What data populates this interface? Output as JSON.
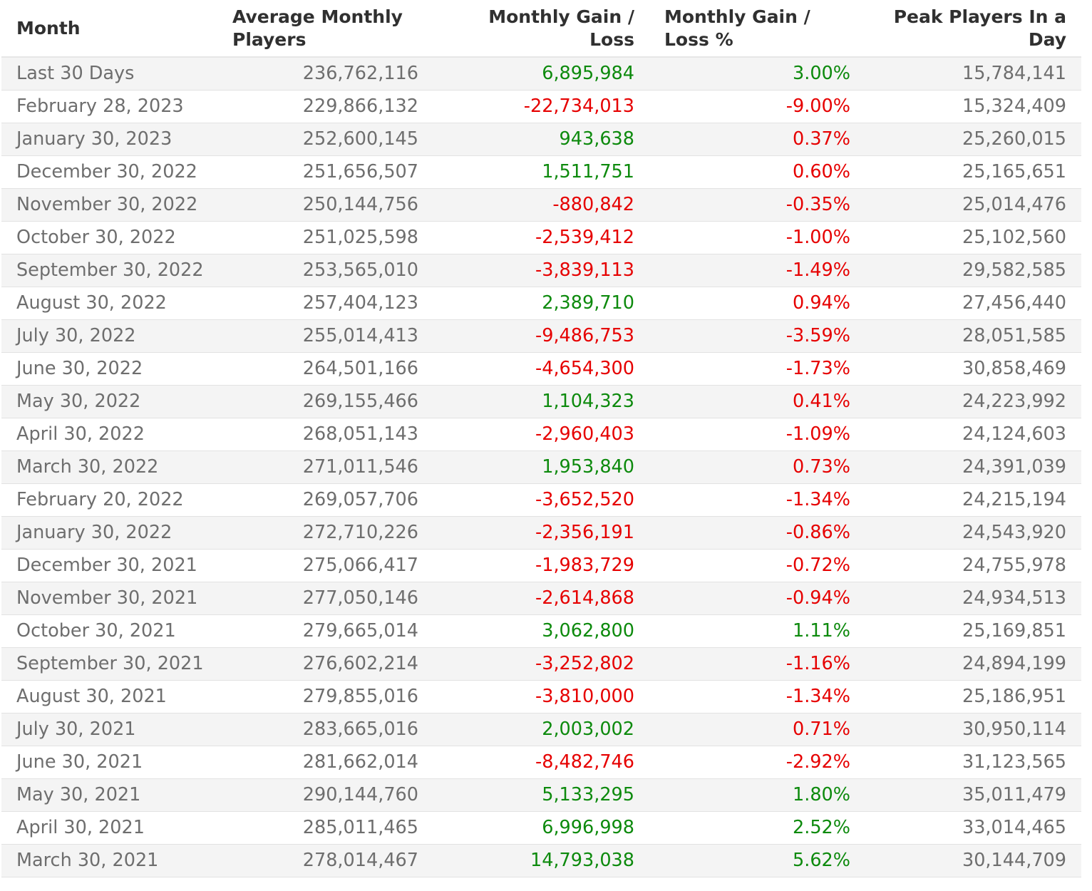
{
  "headers": {
    "month": "Month",
    "avg_players": "Average Monthly Players",
    "gain_loss": "Monthly Gain / Loss",
    "gain_loss_pct": "Monthly Gain / Loss %",
    "peak": "Peak Players In a Day"
  },
  "colors": {
    "positive": "#0d8a0d",
    "negative": "#e60000",
    "stripe": "#f4f4f4",
    "text": "#6e6e6e",
    "header_text": "#303030"
  },
  "rows": [
    {
      "month": "Last 30 Days",
      "avg": "236,762,116",
      "gain": "6,895,984",
      "gain_dir": "pos",
      "pct": "3.00%",
      "pct_dir": "pos",
      "peak": "15,784,141"
    },
    {
      "month": "February 28, 2023",
      "avg": "229,866,132",
      "gain": "-22,734,013",
      "gain_dir": "neg",
      "pct": "-9.00%",
      "pct_dir": "neg",
      "peak": "15,324,409"
    },
    {
      "month": "January 30, 2023",
      "avg": "252,600,145",
      "gain": "943,638",
      "gain_dir": "pos",
      "pct": "0.37%",
      "pct_dir": "neg",
      "peak": "25,260,015"
    },
    {
      "month": "December 30, 2022",
      "avg": "251,656,507",
      "gain": "1,511,751",
      "gain_dir": "pos",
      "pct": "0.60%",
      "pct_dir": "neg",
      "peak": "25,165,651"
    },
    {
      "month": "November 30, 2022",
      "avg": "250,144,756",
      "gain": "-880,842",
      "gain_dir": "neg",
      "pct": "-0.35%",
      "pct_dir": "neg",
      "peak": "25,014,476"
    },
    {
      "month": "October 30, 2022",
      "avg": "251,025,598",
      "gain": "-2,539,412",
      "gain_dir": "neg",
      "pct": "-1.00%",
      "pct_dir": "neg",
      "peak": "25,102,560"
    },
    {
      "month": "September 30, 2022",
      "avg": "253,565,010",
      "gain": "-3,839,113",
      "gain_dir": "neg",
      "pct": "-1.49%",
      "pct_dir": "neg",
      "peak": "29,582,585"
    },
    {
      "month": "August 30, 2022",
      "avg": "257,404,123",
      "gain": "2,389,710",
      "gain_dir": "pos",
      "pct": "0.94%",
      "pct_dir": "neg",
      "peak": "27,456,440"
    },
    {
      "month": "July 30, 2022",
      "avg": "255,014,413",
      "gain": "-9,486,753",
      "gain_dir": "neg",
      "pct": "-3.59%",
      "pct_dir": "neg",
      "peak": "28,051,585"
    },
    {
      "month": "June 30, 2022",
      "avg": "264,501,166",
      "gain": "-4,654,300",
      "gain_dir": "neg",
      "pct": "-1.73%",
      "pct_dir": "neg",
      "peak": "30,858,469"
    },
    {
      "month": "May 30, 2022",
      "avg": "269,155,466",
      "gain": "1,104,323",
      "gain_dir": "pos",
      "pct": "0.41%",
      "pct_dir": "neg",
      "peak": "24,223,992"
    },
    {
      "month": "April 30, 2022",
      "avg": "268,051,143",
      "gain": "-2,960,403",
      "gain_dir": "neg",
      "pct": "-1.09%",
      "pct_dir": "neg",
      "peak": "24,124,603"
    },
    {
      "month": "March 30, 2022",
      "avg": "271,011,546",
      "gain": "1,953,840",
      "gain_dir": "pos",
      "pct": "0.73%",
      "pct_dir": "neg",
      "peak": "24,391,039"
    },
    {
      "month": "February 20, 2022",
      "avg": "269,057,706",
      "gain": "-3,652,520",
      "gain_dir": "neg",
      "pct": "-1.34%",
      "pct_dir": "neg",
      "peak": "24,215,194"
    },
    {
      "month": "January 30, 2022",
      "avg": "272,710,226",
      "gain": "-2,356,191",
      "gain_dir": "neg",
      "pct": "-0.86%",
      "pct_dir": "neg",
      "peak": "24,543,920"
    },
    {
      "month": "December 30, 2021",
      "avg": "275,066,417",
      "gain": "-1,983,729",
      "gain_dir": "neg",
      "pct": "-0.72%",
      "pct_dir": "neg",
      "peak": "24,755,978"
    },
    {
      "month": "November 30, 2021",
      "avg": "277,050,146",
      "gain": "-2,614,868",
      "gain_dir": "neg",
      "pct": "-0.94%",
      "pct_dir": "neg",
      "peak": "24,934,513"
    },
    {
      "month": "October 30, 2021",
      "avg": "279,665,014",
      "gain": "3,062,800",
      "gain_dir": "pos",
      "pct": "1.11%",
      "pct_dir": "pos",
      "peak": "25,169,851"
    },
    {
      "month": "September 30, 2021",
      "avg": "276,602,214",
      "gain": "-3,252,802",
      "gain_dir": "neg",
      "pct": "-1.16%",
      "pct_dir": "neg",
      "peak": "24,894,199"
    },
    {
      "month": "August 30, 2021",
      "avg": "279,855,016",
      "gain": "-3,810,000",
      "gain_dir": "neg",
      "pct": "-1.34%",
      "pct_dir": "neg",
      "peak": "25,186,951"
    },
    {
      "month": "July 30, 2021",
      "avg": "283,665,016",
      "gain": "2,003,002",
      "gain_dir": "pos",
      "pct": "0.71%",
      "pct_dir": "neg",
      "peak": "30,950,114"
    },
    {
      "month": "June 30, 2021",
      "avg": "281,662,014",
      "gain": "-8,482,746",
      "gain_dir": "neg",
      "pct": "-2.92%",
      "pct_dir": "neg",
      "peak": "31,123,565"
    },
    {
      "month": "May 30, 2021",
      "avg": "290,144,760",
      "gain": "5,133,295",
      "gain_dir": "pos",
      "pct": "1.80%",
      "pct_dir": "pos",
      "peak": "35,011,479"
    },
    {
      "month": "April 30, 2021",
      "avg": "285,011,465",
      "gain": "6,996,998",
      "gain_dir": "pos",
      "pct": "2.52%",
      "pct_dir": "pos",
      "peak": "33,014,465"
    },
    {
      "month": "March 30, 2021",
      "avg": "278,014,467",
      "gain": "14,793,038",
      "gain_dir": "pos",
      "pct": "5.62%",
      "pct_dir": "pos",
      "peak": "30,144,709"
    }
  ]
}
